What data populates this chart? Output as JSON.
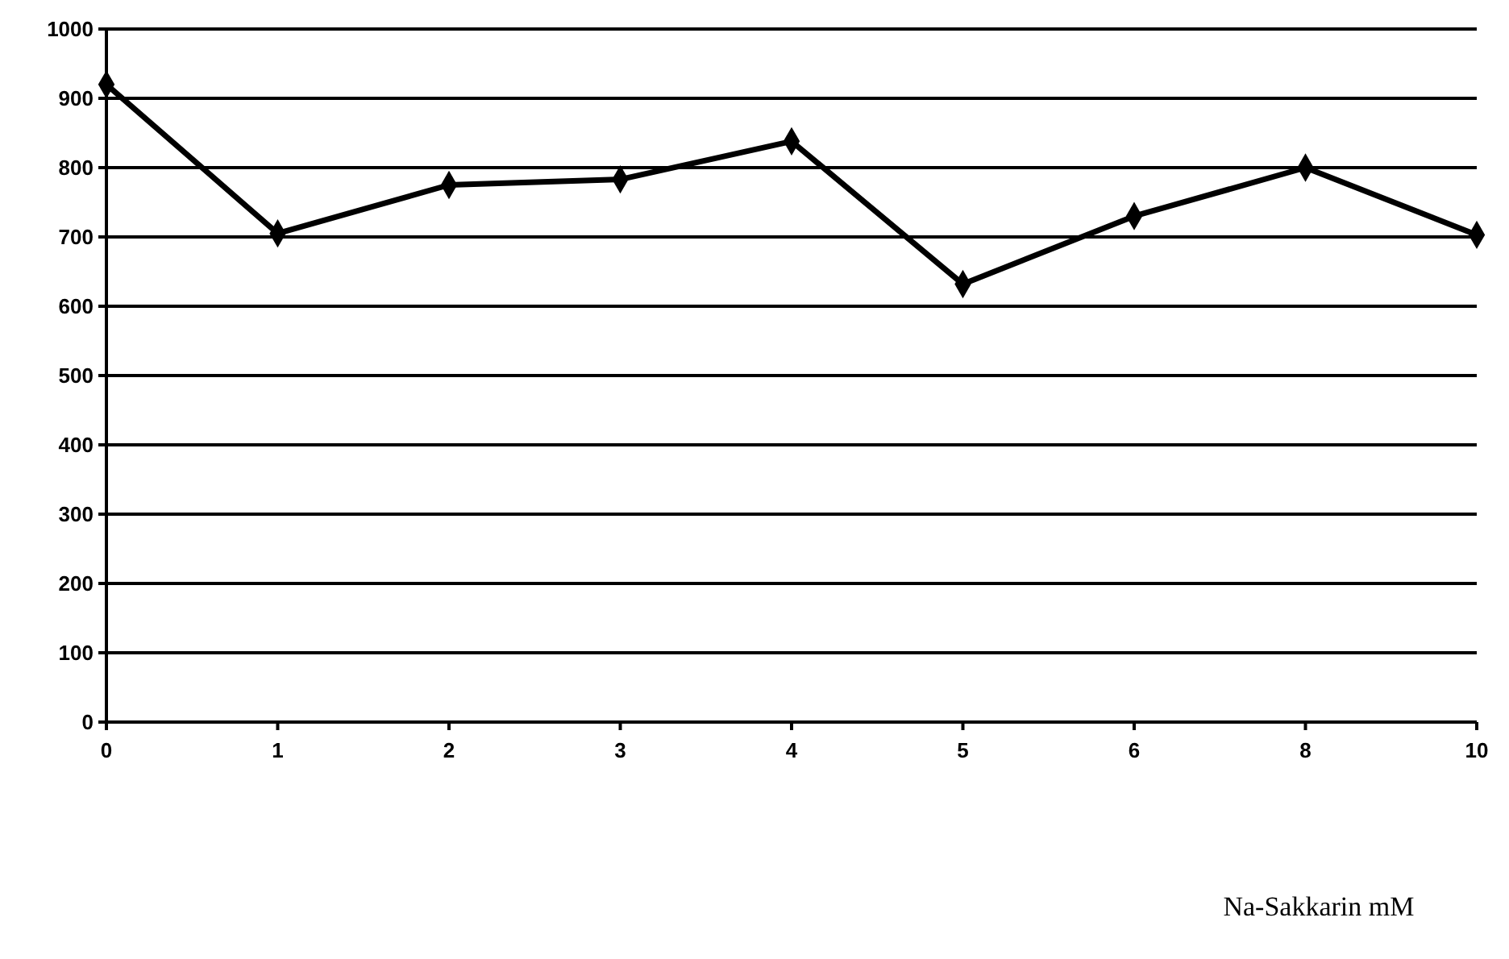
{
  "chart_data": {
    "type": "line",
    "xlabel": "Na-Sakkarin mM",
    "categories": [
      "0",
      "1",
      "2",
      "3",
      "4",
      "5",
      "6",
      "8",
      "10"
    ],
    "series": [
      {
        "color": "#000000",
        "values": [
          920,
          705,
          775,
          783,
          838,
          632,
          730,
          800,
          703
        ]
      }
    ],
    "ylim": [
      0,
      1000
    ],
    "yticks": [
      0,
      100,
      200,
      300,
      400,
      500,
      600,
      700,
      800,
      900,
      1000
    ],
    "grid": "y",
    "marker": "diamond",
    "line_style": "solid"
  }
}
